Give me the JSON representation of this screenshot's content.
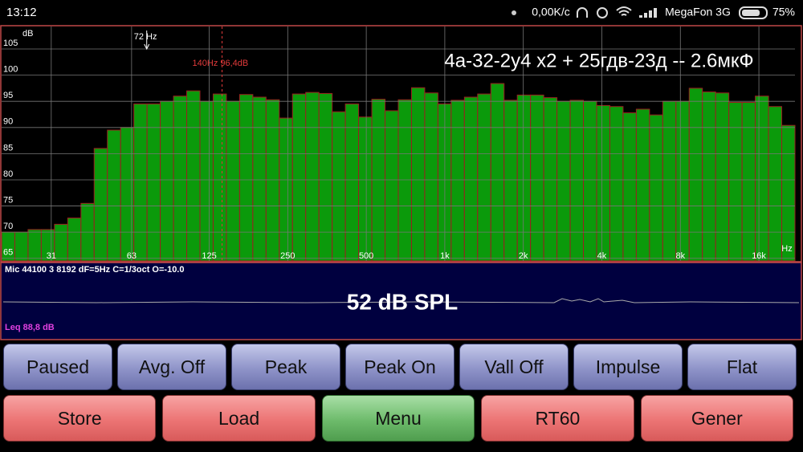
{
  "status_bar": {
    "time": "13:12",
    "speed": "0,00K/c",
    "carrier": "MegaFon 3G",
    "battery": "75%"
  },
  "chart_data": {
    "type": "bar",
    "title": "4а-32-2у4 х2 + 25гдв-23д -- 2.6мкФ",
    "y_label": "dB",
    "x_label": "Hz",
    "values": [
      70,
      70,
      70.5,
      70.5,
      71.5,
      72.7,
      75.5,
      86,
      89.5,
      90,
      94.5,
      94.5,
      95,
      96,
      97,
      95,
      96.4,
      95,
      96.3,
      95.8,
      95.3,
      91.8,
      96.4,
      96.7,
      96.5,
      93,
      94.5,
      92,
      95.4,
      93.2,
      95.3,
      97.6,
      96.6,
      94.5,
      95.2,
      95.8,
      96.4,
      98.4,
      95.2,
      96.2,
      96.2,
      95.7,
      95,
      95.2,
      95,
      94.2,
      94,
      92.8,
      93.5,
      92.4,
      95,
      95,
      97.5,
      96.8,
      96.6,
      94.8,
      94.8,
      96,
      94,
      90.4
    ],
    "color": "#0b9a0b",
    "edge_color": "#9a2020",
    "ylim": [
      64.5,
      109.3
    ],
    "yticks": [
      65,
      70,
      75,
      80,
      85,
      90,
      95,
      100,
      105
    ],
    "xlim": [
      20,
      22000
    ],
    "log_x": true,
    "xticks": [
      31,
      63,
      125,
      250,
      500,
      {
        "value": 1000,
        "label": "1k"
      },
      {
        "value": 2000,
        "label": "2k"
      },
      {
        "value": 4000,
        "label": "4k"
      },
      {
        "value": 8000,
        "label": "8k"
      },
      {
        "value": 16000,
        "label": "16k"
      }
    ],
    "grid": true,
    "annotations": [
      {
        "text": "72 Hz",
        "x": 72,
        "color": "#ffffff"
      },
      {
        "text": "140Hz  96,4dB",
        "x": 140,
        "color": "#e03a3a"
      }
    ]
  },
  "info_panel": {
    "settings": "Mic 44100 3 8192 dF=5Hz C=1/3oct O=-10.0",
    "spl": "52 dB SPL",
    "leq": "Leq  88,8 dB"
  },
  "buttons": {
    "row1": [
      "Paused",
      "Avg. Off",
      "Peak",
      "Peak On",
      "Vall Off",
      "Impulse",
      "Flat"
    ],
    "row2": [
      "Store",
      "Load",
      "Menu",
      "RT60",
      "Gener"
    ]
  }
}
